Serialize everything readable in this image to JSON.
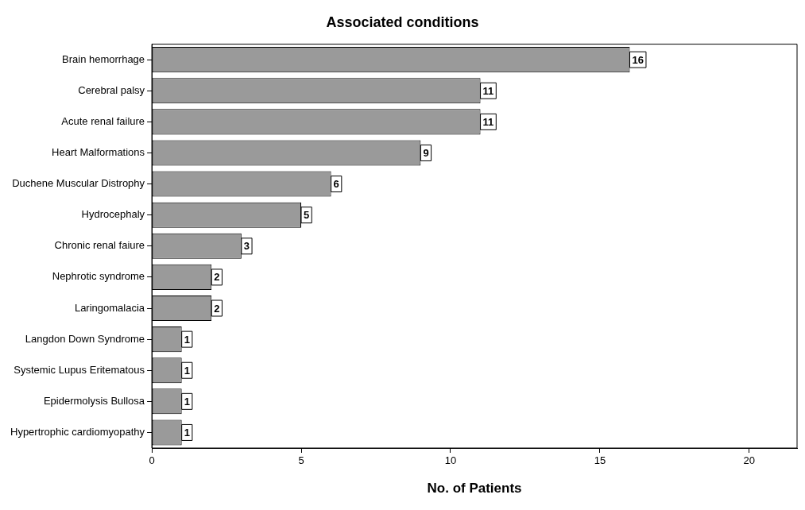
{
  "chart_data": {
    "type": "bar",
    "orientation": "horizontal",
    "title": "Associated conditions",
    "xlabel": "No. of Patients",
    "categories": [
      "Brain hemorrhage",
      "Cerebral palsy",
      "Acute renal failure",
      "Heart Malformations",
      "Duchene Muscular Distrophy",
      "Hydrocephaly",
      "Chronic renal faiure",
      "Nephrotic syndrome",
      "Laringomalacia",
      "Langdon Down Syndrome",
      "Systemic Lupus Eritematous",
      "Epidermolysis Bullosa",
      "Hypertrophic cardiomyopathy"
    ],
    "values": [
      16,
      11,
      11,
      9,
      6,
      5,
      3,
      2,
      2,
      1,
      1,
      1,
      1
    ],
    "color": "#9a9a9a",
    "xlim": [
      0,
      21.6
    ],
    "xticks": [
      0,
      5,
      10,
      15,
      20
    ],
    "data_labels": true,
    "grid": false,
    "legend": false
  }
}
